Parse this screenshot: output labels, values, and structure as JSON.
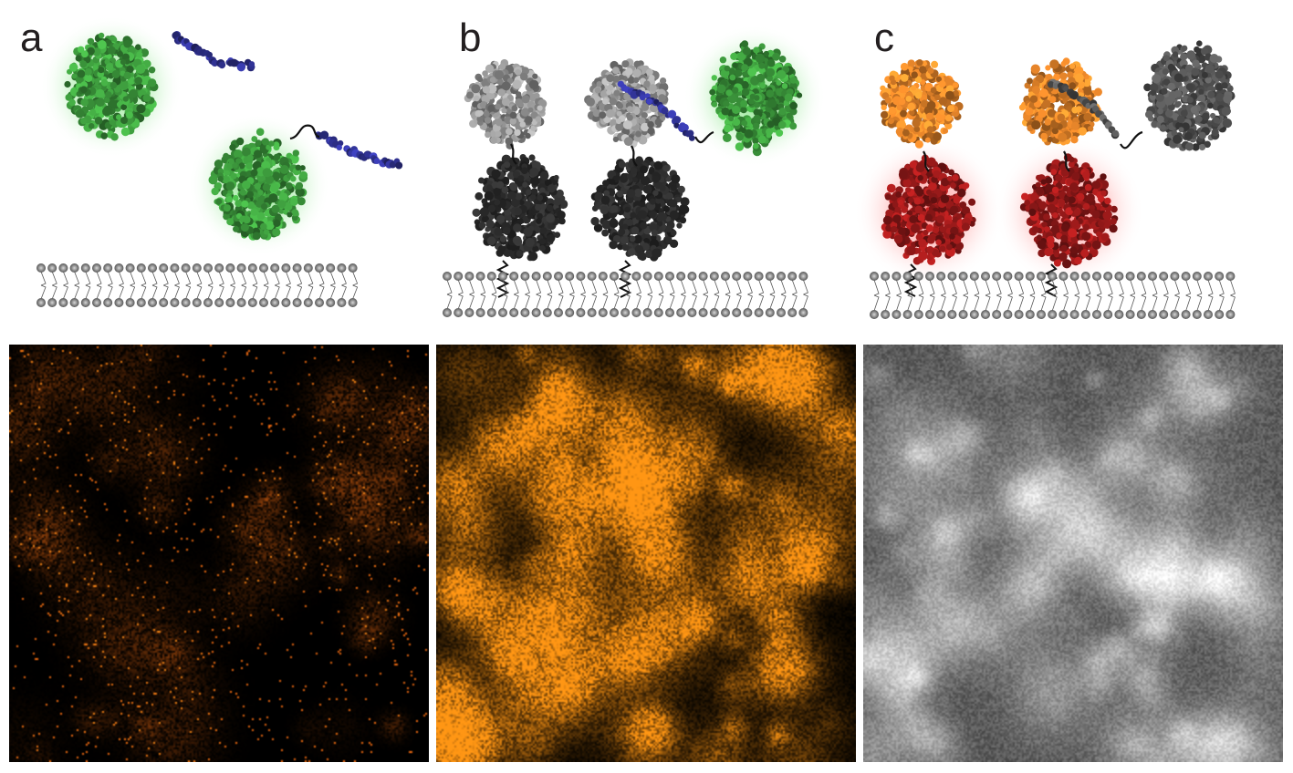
{
  "panels": [
    {
      "letter": "a"
    },
    {
      "letter": "b"
    },
    {
      "letter": "c"
    }
  ],
  "colors": {
    "green_protein": "#3d9a3d",
    "green_glow": "#7ee07e",
    "blue_peptide": "#2f3190",
    "gray_protein": "#9a9a9a",
    "dark_protein": "#2e2e2e",
    "orange_protein": "#e8862a",
    "red_protein": "#9a1a1a",
    "red_glow": "#ff8080",
    "dark_gray_protein": "#555555",
    "membrane_head": "#777777",
    "micro_orange": "#ff9a1a"
  },
  "icons": [
    "membrane-bilayer",
    "protein-blob",
    "peptide-chain",
    "linker-tether"
  ]
}
